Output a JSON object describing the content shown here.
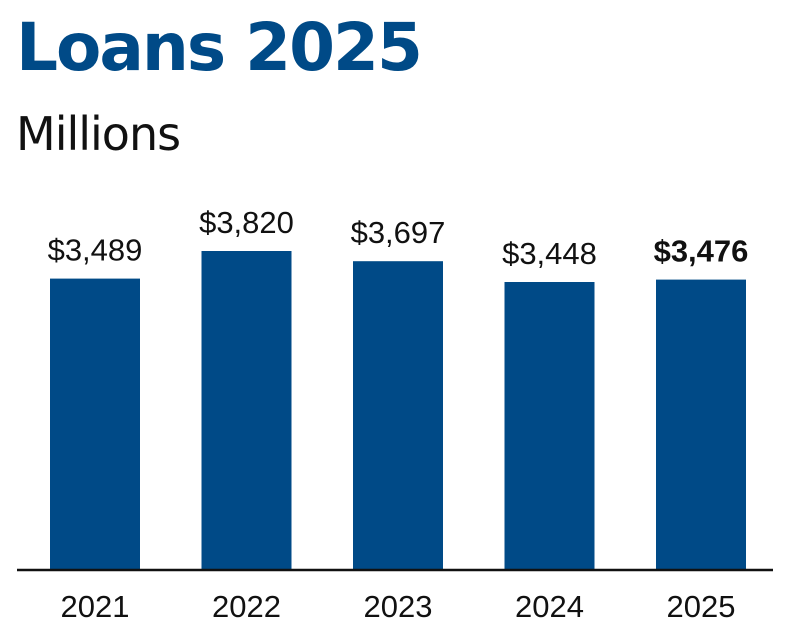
{
  "chart_data": {
    "type": "bar",
    "title": "Loans 2025",
    "subtitle": "Millions",
    "categories": [
      "2021",
      "2022",
      "2023",
      "2024",
      "2025"
    ],
    "values": [
      3489,
      3820,
      3697,
      3448,
      3476
    ],
    "value_labels": [
      "$3,489",
      "$3,820",
      "$3,697",
      "$3,448",
      "$3,476"
    ],
    "highlight_index": 4,
    "xlabel": "",
    "ylabel": "",
    "ylim": [
      0,
      3820
    ],
    "grid": false,
    "legend": "none",
    "colors": {
      "bar": "#004a87",
      "title": "#004a87",
      "text": "#111111",
      "axis": "#111111"
    }
  }
}
